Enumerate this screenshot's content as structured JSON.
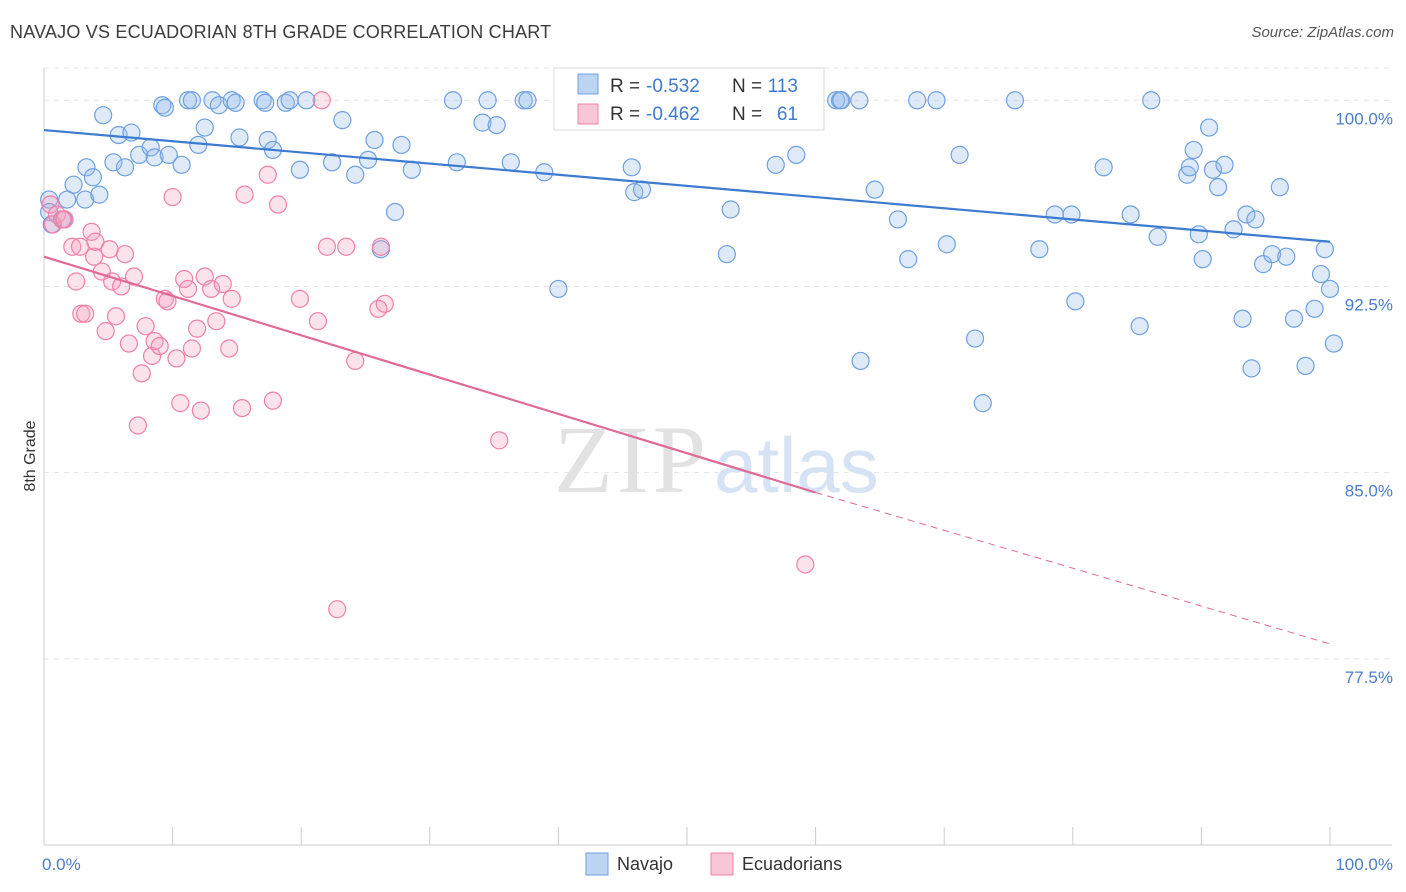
{
  "header": {
    "title": "NAVAJO VS ECUADORIAN 8TH GRADE CORRELATION CHART",
    "source": "Source: ZipAtlas.com"
  },
  "watermark": {
    "zip": "ZIP",
    "atlas": "atlas"
  },
  "stats": [
    {
      "r_label": "R =",
      "r_value": "-0.532",
      "n_label": "N =",
      "n_value": "113",
      "color": "#6fa0e0"
    },
    {
      "r_label": "R =",
      "r_value": "-0.462",
      "n_label": "N =",
      "n_value": "61",
      "color": "#f080a8"
    }
  ],
  "chart_data": {
    "type": "scatter",
    "title": "NAVAJO VS ECUADORIAN 8TH GRADE CORRELATION CHART",
    "xlabel": "",
    "ylabel": "8th Grade",
    "xlim": [
      0,
      100
    ],
    "ylim": [
      70.0,
      101.3
    ],
    "x_tick_labels": [
      "0.0%",
      "100.0%"
    ],
    "y_ticks": [
      100.0,
      92.5,
      85.0,
      77.5
    ],
    "y_tick_labels": [
      "100.0%",
      "92.5%",
      "85.0%",
      "77.5%"
    ],
    "grid": "horizontal dashed",
    "legend_position": "bottom-center",
    "colors": {
      "navajo": "#6fa0e0",
      "ecuadorians": "#f080a8",
      "navajo_line": "#3d7bd0",
      "ecuadorians_line": "#e06a96"
    },
    "series": [
      {
        "name": "Navajo",
        "r": -0.532,
        "n": 113,
        "trend": {
          "x": [
            0,
            100
          ],
          "y": [
            98.8,
            94.3
          ]
        },
        "points": [
          [
            0.4,
            96.0
          ],
          [
            0.4,
            95.5
          ],
          [
            0.6,
            95.0
          ],
          [
            1.5,
            95.2
          ],
          [
            1.8,
            96.0
          ],
          [
            2.3,
            96.6
          ],
          [
            3.2,
            96.0
          ],
          [
            3.3,
            97.3
          ],
          [
            3.8,
            96.9
          ],
          [
            4.3,
            96.2
          ],
          [
            4.6,
            99.4
          ],
          [
            5.4,
            97.5
          ],
          [
            5.8,
            98.6
          ],
          [
            6.3,
            97.3
          ],
          [
            6.8,
            98.7
          ],
          [
            7.4,
            97.8
          ],
          [
            8.3,
            98.1
          ],
          [
            8.6,
            97.7
          ],
          [
            9.2,
            99.8
          ],
          [
            9.4,
            99.7
          ],
          [
            9.7,
            97.8
          ],
          [
            10.7,
            97.4
          ],
          [
            11.2,
            100.0
          ],
          [
            11.5,
            100.0
          ],
          [
            12.0,
            98.2
          ],
          [
            12.5,
            98.9
          ],
          [
            13.1,
            100.0
          ],
          [
            13.6,
            99.8
          ],
          [
            14.6,
            100.0
          ],
          [
            14.9,
            99.9
          ],
          [
            15.2,
            98.5
          ],
          [
            17.0,
            100.0
          ],
          [
            17.2,
            99.9
          ],
          [
            17.4,
            98.4
          ],
          [
            17.8,
            98.0
          ],
          [
            18.8,
            99.9
          ],
          [
            19.1,
            100.0
          ],
          [
            19.9,
            97.2
          ],
          [
            20.4,
            100.0
          ],
          [
            22.4,
            97.5
          ],
          [
            23.2,
            99.2
          ],
          [
            24.2,
            97.0
          ],
          [
            25.2,
            97.6
          ],
          [
            25.7,
            98.4
          ],
          [
            26.2,
            94.0
          ],
          [
            27.3,
            95.5
          ],
          [
            27.8,
            98.2
          ],
          [
            28.6,
            97.2
          ],
          [
            31.8,
            100.0
          ],
          [
            32.1,
            97.5
          ],
          [
            34.1,
            99.1
          ],
          [
            34.5,
            100.0
          ],
          [
            35.2,
            99.0
          ],
          [
            36.3,
            97.5
          ],
          [
            37.3,
            100.0
          ],
          [
            37.6,
            100.0
          ],
          [
            38.9,
            97.1
          ],
          [
            40.0,
            92.4
          ],
          [
            42.2,
            100.0
          ],
          [
            45.7,
            97.3
          ],
          [
            45.9,
            96.3
          ],
          [
            46.5,
            96.4
          ],
          [
            50.3,
            100.0
          ],
          [
            52.7,
            100.0
          ],
          [
            53.1,
            93.8
          ],
          [
            53.4,
            95.6
          ],
          [
            56.9,
            97.4
          ],
          [
            58.5,
            97.8
          ],
          [
            61.6,
            100.0
          ],
          [
            61.9,
            100.0
          ],
          [
            62.0,
            100.0
          ],
          [
            63.4,
            100.0
          ],
          [
            63.5,
            89.5
          ],
          [
            64.6,
            96.4
          ],
          [
            66.4,
            95.2
          ],
          [
            67.2,
            93.6
          ],
          [
            67.9,
            100.0
          ],
          [
            69.4,
            100.0
          ],
          [
            70.2,
            94.2
          ],
          [
            71.2,
            97.8
          ],
          [
            72.4,
            90.4
          ],
          [
            73.0,
            87.8
          ],
          [
            75.5,
            100.0
          ],
          [
            77.4,
            94.0
          ],
          [
            78.6,
            95.4
          ],
          [
            79.9,
            95.4
          ],
          [
            80.2,
            91.9
          ],
          [
            82.4,
            97.3
          ],
          [
            84.5,
            95.4
          ],
          [
            85.2,
            90.9
          ],
          [
            86.1,
            100.0
          ],
          [
            86.6,
            94.5
          ],
          [
            88.9,
            97.0
          ],
          [
            89.1,
            97.3
          ],
          [
            89.4,
            98.0
          ],
          [
            89.8,
            94.6
          ],
          [
            90.1,
            93.6
          ],
          [
            90.6,
            98.9
          ],
          [
            90.9,
            97.2
          ],
          [
            91.3,
            96.5
          ],
          [
            91.8,
            97.4
          ],
          [
            92.5,
            94.8
          ],
          [
            93.2,
            91.2
          ],
          [
            93.5,
            95.4
          ],
          [
            93.9,
            89.2
          ],
          [
            94.2,
            95.2
          ],
          [
            94.8,
            93.4
          ],
          [
            95.5,
            93.8
          ],
          [
            96.1,
            96.5
          ],
          [
            96.6,
            93.7
          ],
          [
            97.2,
            91.2
          ],
          [
            98.1,
            89.3
          ],
          [
            98.8,
            91.6
          ],
          [
            99.3,
            93.0
          ],
          [
            99.6,
            94.0
          ],
          [
            100.0,
            92.4
          ],
          [
            100.3,
            90.2
          ]
        ]
      },
      {
        "name": "Ecuadorians",
        "r": -0.462,
        "n": 61,
        "trend": {
          "x": [
            0,
            60
          ],
          "y": [
            93.7,
            84.2
          ]
        },
        "trend_extrapolated": {
          "x": [
            60,
            100
          ],
          "y": [
            84.2,
            78.1
          ]
        },
        "points": [
          [
            0.5,
            95.8
          ],
          [
            0.7,
            95.0
          ],
          [
            1.0,
            95.4
          ],
          [
            1.4,
            95.2
          ],
          [
            1.6,
            95.2
          ],
          [
            2.2,
            94.1
          ],
          [
            2.5,
            92.7
          ],
          [
            2.8,
            94.1
          ],
          [
            2.9,
            91.4
          ],
          [
            3.2,
            91.4
          ],
          [
            3.7,
            94.7
          ],
          [
            3.9,
            93.7
          ],
          [
            4.0,
            94.3
          ],
          [
            4.5,
            93.1
          ],
          [
            4.8,
            90.7
          ],
          [
            5.1,
            94.0
          ],
          [
            5.3,
            92.7
          ],
          [
            5.6,
            91.3
          ],
          [
            6.0,
            92.5
          ],
          [
            6.3,
            93.8
          ],
          [
            6.6,
            90.2
          ],
          [
            7.0,
            92.9
          ],
          [
            7.3,
            86.9
          ],
          [
            7.6,
            89.0
          ],
          [
            7.9,
            90.9
          ],
          [
            8.4,
            89.7
          ],
          [
            8.6,
            90.3
          ],
          [
            9.0,
            90.1
          ],
          [
            9.4,
            92.0
          ],
          [
            9.6,
            91.9
          ],
          [
            10.0,
            96.1
          ],
          [
            10.3,
            89.6
          ],
          [
            10.6,
            87.8
          ],
          [
            10.9,
            92.8
          ],
          [
            11.2,
            92.4
          ],
          [
            11.5,
            90.0
          ],
          [
            11.9,
            90.8
          ],
          [
            12.2,
            87.5
          ],
          [
            12.5,
            92.9
          ],
          [
            13.0,
            92.4
          ],
          [
            13.4,
            91.1
          ],
          [
            13.9,
            92.6
          ],
          [
            14.4,
            90.0
          ],
          [
            14.6,
            92.0
          ],
          [
            15.4,
            87.6
          ],
          [
            15.6,
            96.2
          ],
          [
            17.4,
            97.0
          ],
          [
            17.8,
            87.9
          ],
          [
            18.2,
            95.8
          ],
          [
            19.9,
            92.0
          ],
          [
            21.3,
            91.1
          ],
          [
            21.6,
            100.0
          ],
          [
            22.0,
            94.1
          ],
          [
            22.8,
            79.5
          ],
          [
            23.5,
            94.1
          ],
          [
            24.2,
            89.5
          ],
          [
            26.0,
            91.6
          ],
          [
            26.2,
            94.1
          ],
          [
            26.5,
            91.8
          ],
          [
            35.4,
            86.3
          ],
          [
            59.2,
            81.3
          ]
        ]
      }
    ]
  }
}
